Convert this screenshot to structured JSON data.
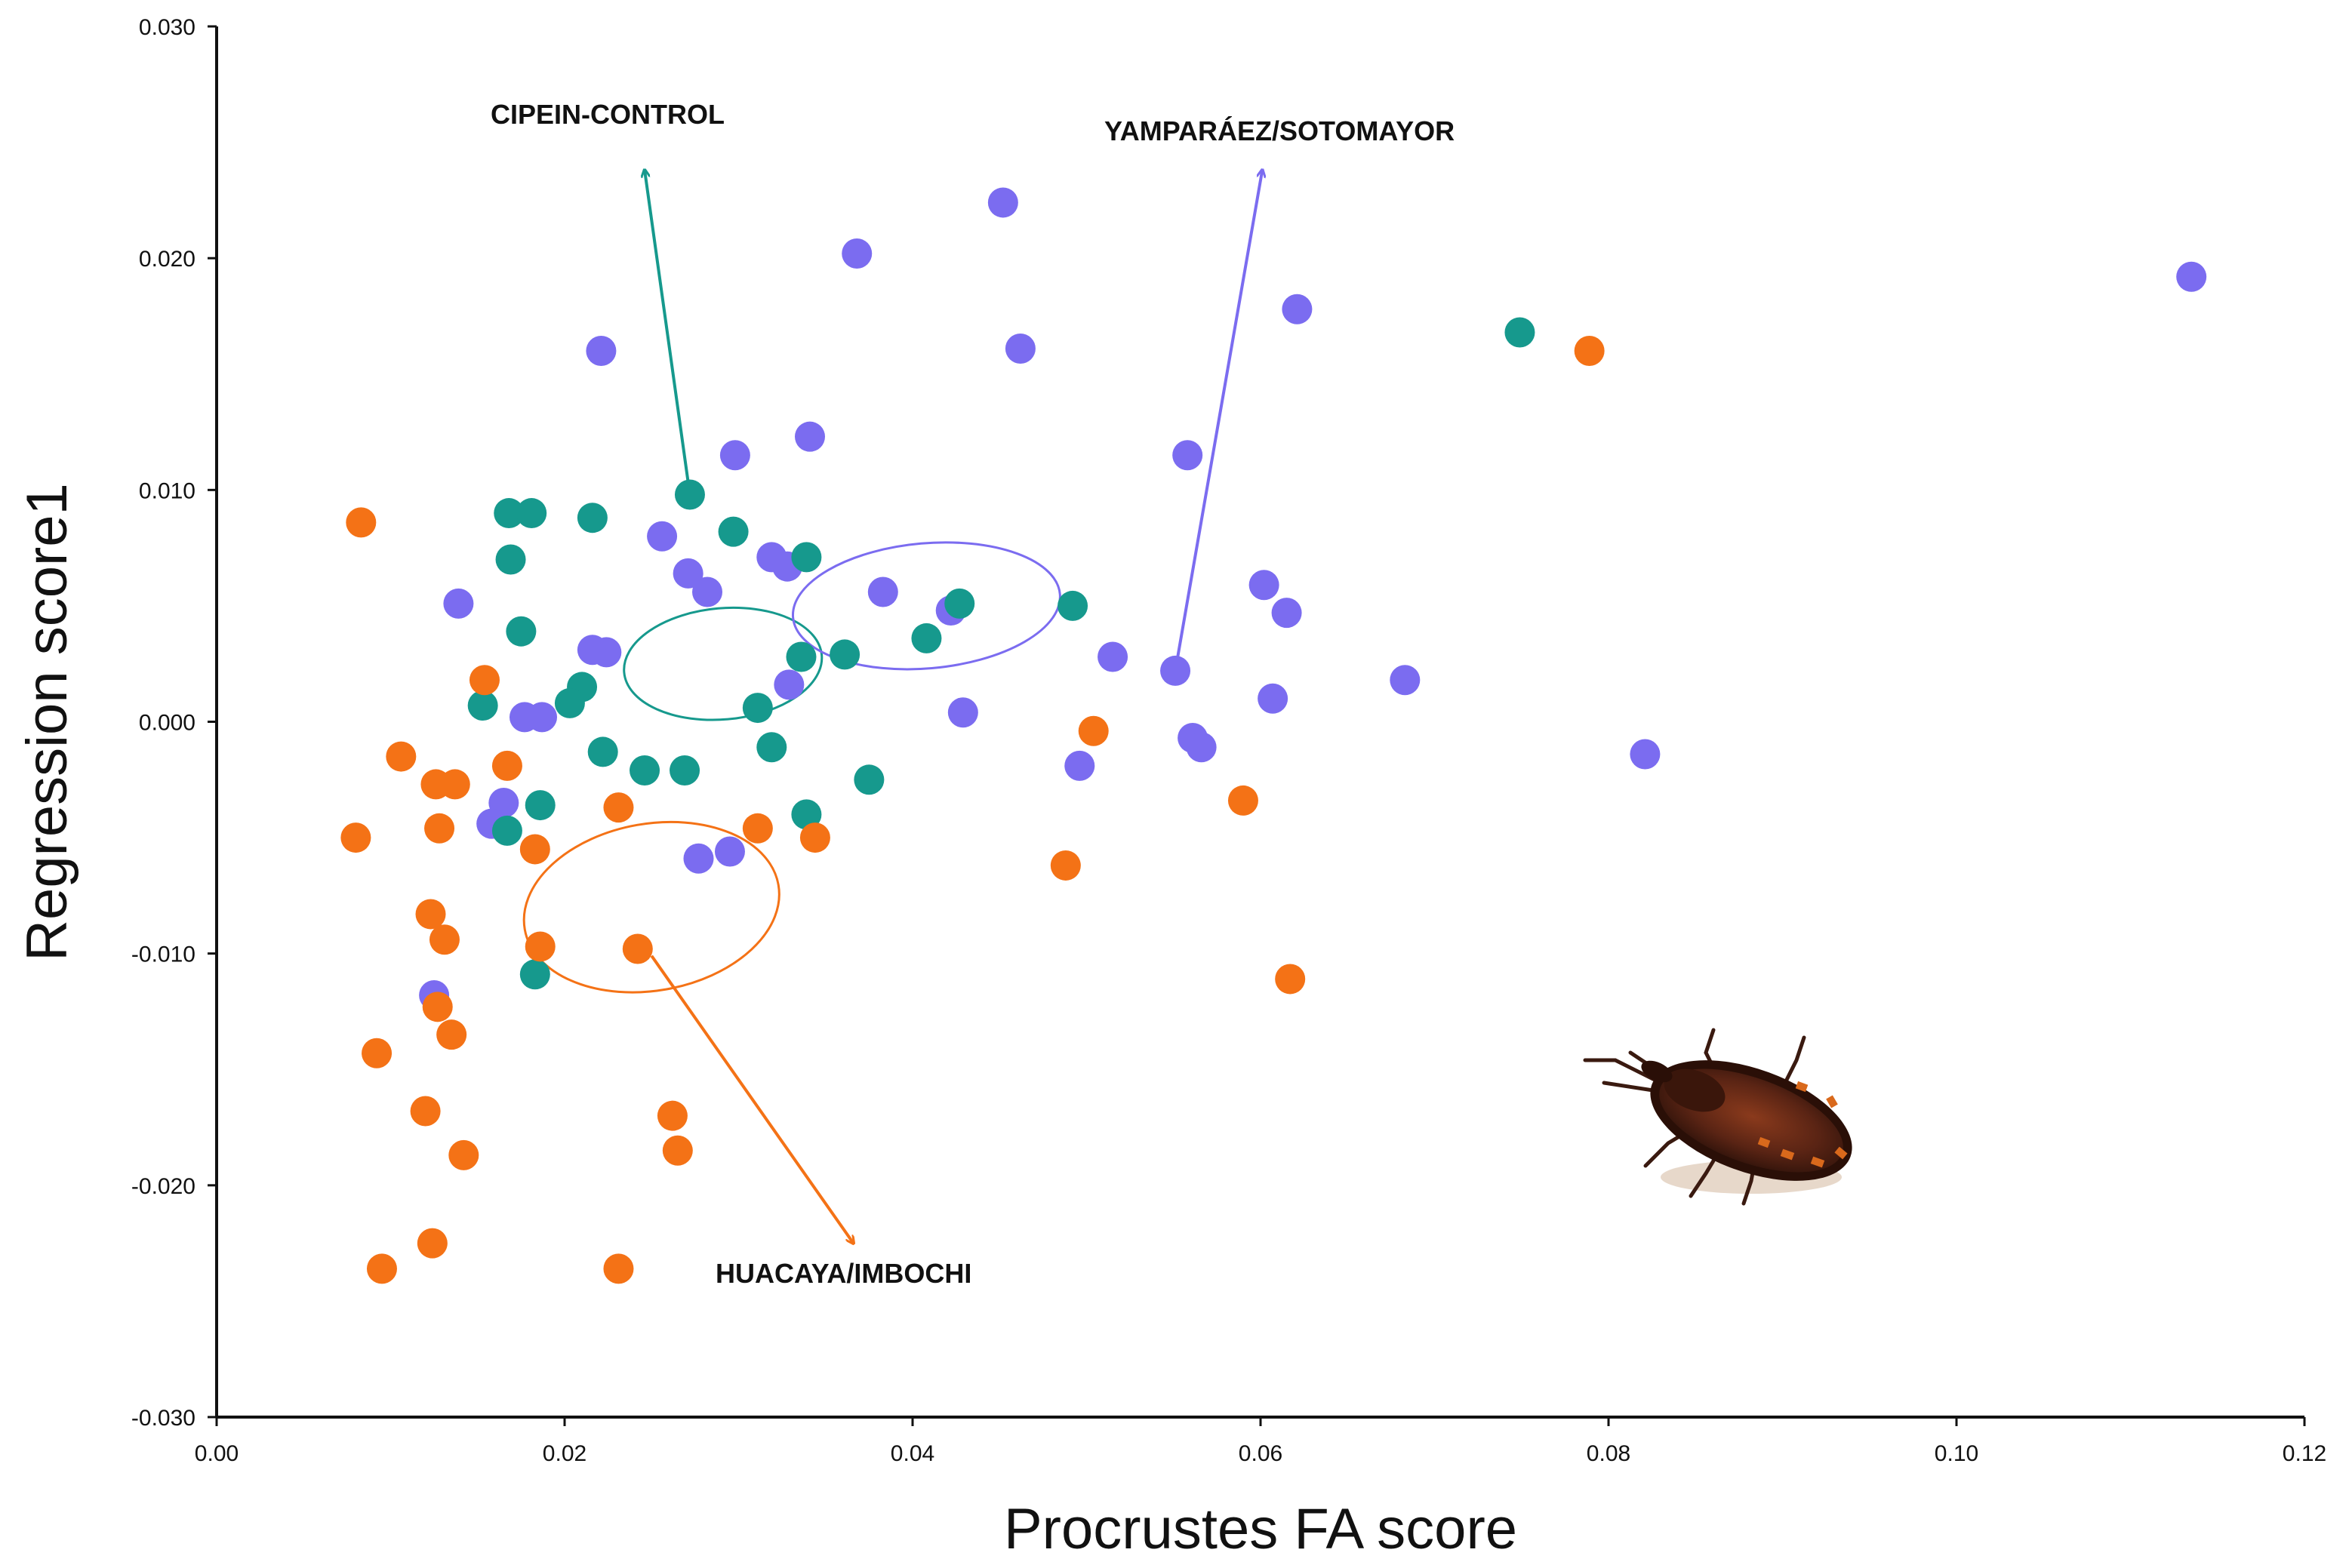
{
  "chart_data": {
    "type": "scatter",
    "title": "",
    "xlabel": "Procrustes FA score",
    "ylabel": "Regression score1",
    "xlim": [
      0,
      0.12
    ],
    "ylim": [
      -0.03,
      0.03
    ],
    "x_ticks": [
      "0.00",
      "0.02",
      "0.04",
      "0.06",
      "0.08",
      "0.10",
      "0.12"
    ],
    "y_ticks": [
      "-0.030",
      "-0.020",
      "-0.010",
      "0.000",
      "0.010",
      "0.020",
      "0.030"
    ],
    "grid": false,
    "series": [
      {
        "name": "YAMPARÁEZ/SOTOMAYOR",
        "color": "#7b6cf0",
        "points": [
          [
            0.0452,
            0.0224
          ],
          [
            0.0368,
            0.0202
          ],
          [
            0.1135,
            0.0192
          ],
          [
            0.0621,
            0.0178
          ],
          [
            0.0221,
            0.016
          ],
          [
            0.0462,
            0.0161
          ],
          [
            0.0558,
            0.0115
          ],
          [
            0.0298,
            0.0115
          ],
          [
            0.0341,
            0.0123
          ],
          [
            0.0256,
            0.008
          ],
          [
            0.0271,
            0.0064
          ],
          [
            0.0282,
            0.0056
          ],
          [
            0.0319,
            0.0071
          ],
          [
            0.0328,
            0.0067
          ],
          [
            0.0602,
            0.0059
          ],
          [
            0.0383,
            0.0056
          ],
          [
            0.0422,
            0.0048
          ],
          [
            0.0615,
            0.0047
          ],
          [
            0.0139,
            0.0051
          ],
          [
            0.0216,
            0.0031
          ],
          [
            0.0224,
            0.003
          ],
          [
            0.0515,
            0.0028
          ],
          [
            0.0551,
            0.0022
          ],
          [
            0.0683,
            0.0018
          ],
          [
            0.0329,
            0.0016
          ],
          [
            0.0607,
            0.001
          ],
          [
            0.0429,
            0.0004
          ],
          [
            0.0177,
            0.0002
          ],
          [
            0.0187,
            0.0002
          ],
          [
            0.0561,
            -0.0007
          ],
          [
            0.0566,
            -0.0011
          ],
          [
            0.0821,
            -0.0014
          ],
          [
            0.0496,
            -0.0019
          ],
          [
            0.0165,
            -0.0035
          ],
          [
            0.0158,
            -0.0044
          ],
          [
            0.0277,
            -0.0059
          ],
          [
            0.0295,
            -0.0056
          ],
          [
            0.0125,
            -0.0118
          ]
        ]
      },
      {
        "name": "CIPEIN-CONTROL",
        "color": "#16998d",
        "points": [
          [
            0.0749,
            0.0168
          ],
          [
            0.0272,
            0.0098
          ],
          [
            0.0168,
            0.009
          ],
          [
            0.0181,
            0.009
          ],
          [
            0.0216,
            0.0088
          ],
          [
            0.0297,
            0.0082
          ],
          [
            0.0169,
            0.007
          ],
          [
            0.0339,
            0.0071
          ],
          [
            0.0427,
            0.0051
          ],
          [
            0.0492,
            0.005
          ],
          [
            0.0175,
            0.0039
          ],
          [
            0.0408,
            0.0036
          ],
          [
            0.0336,
            0.0028
          ],
          [
            0.0361,
            0.0029
          ],
          [
            0.021,
            0.0015
          ],
          [
            0.0203,
            0.0008
          ],
          [
            0.0153,
            0.0007
          ],
          [
            0.0311,
            0.0006
          ],
          [
            0.0222,
            -0.0013
          ],
          [
            0.0319,
            -0.0011
          ],
          [
            0.0246,
            -0.0021
          ],
          [
            0.0269,
            -0.0021
          ],
          [
            0.0375,
            -0.0025
          ],
          [
            0.0186,
            -0.0036
          ],
          [
            0.0339,
            -0.004
          ],
          [
            0.0167,
            -0.0047
          ],
          [
            0.0183,
            -0.0109
          ]
        ]
      },
      {
        "name": "HUACAYA/IMBOCHI",
        "color": "#f47216",
        "points": [
          [
            0.0789,
            0.016
          ],
          [
            0.0083,
            0.0086
          ],
          [
            0.0154,
            0.0018
          ],
          [
            0.0504,
            -0.0004
          ],
          [
            0.0106,
            -0.0015
          ],
          [
            0.0167,
            -0.0019
          ],
          [
            0.0126,
            -0.0027
          ],
          [
            0.0137,
            -0.0027
          ],
          [
            0.0231,
            -0.0037
          ],
          [
            0.059,
            -0.0034
          ],
          [
            0.008,
            -0.005
          ],
          [
            0.0128,
            -0.0046
          ],
          [
            0.0311,
            -0.0046
          ],
          [
            0.0344,
            -0.005
          ],
          [
            0.0183,
            -0.0055
          ],
          [
            0.0488,
            -0.0062
          ],
          [
            0.0123,
            -0.0083
          ],
          [
            0.0131,
            -0.0094
          ],
          [
            0.0186,
            -0.0097
          ],
          [
            0.0242,
            -0.0098
          ],
          [
            0.0617,
            -0.0111
          ],
          [
            0.0127,
            -0.0123
          ],
          [
            0.0135,
            -0.0135
          ],
          [
            0.0092,
            -0.0143
          ],
          [
            0.012,
            -0.0168
          ],
          [
            0.0262,
            -0.017
          ],
          [
            0.0265,
            -0.0185
          ],
          [
            0.0142,
            -0.0187
          ],
          [
            0.0124,
            -0.0225
          ],
          [
            0.0095,
            -0.0236
          ],
          [
            0.0231,
            -0.0236
          ]
        ]
      }
    ],
    "annotations": [
      {
        "text": "CIPEIN-CONTROL",
        "series": 1,
        "color": "#16998d",
        "ellipse_center": [
          0.0291,
          0.0025
        ],
        "ellipse_radii": [
          0.0057,
          0.0024
        ],
        "ellipse_angle": -5,
        "arrow_from": [
          0.0272,
          0.0098
        ],
        "arrow_to": [
          0.0246,
          0.0238
        ]
      },
      {
        "text": "YAMPARÁEZ/SOTOMAYOR",
        "series": 0,
        "color": "#7b6cf0",
        "ellipse_center": [
          0.0408,
          0.005
        ],
        "ellipse_radii": [
          0.0077,
          0.0027
        ],
        "ellipse_angle": -5,
        "arrow_from": [
          0.0551,
          0.0022
        ],
        "arrow_to": [
          0.0601,
          0.0238
        ]
      },
      {
        "text": "HUACAYA/IMBOCHI",
        "series": 2,
        "color": "#f47216",
        "ellipse_center": [
          0.025,
          -0.008
        ],
        "ellipse_radii": [
          0.0074,
          0.0036
        ],
        "ellipse_angle": -10,
        "arrow_from": [
          0.025,
          -0.0101
        ],
        "arrow_to": [
          0.0366,
          -0.0225
        ]
      }
    ],
    "image": {
      "name": "triatomine-bug-photo"
    }
  }
}
